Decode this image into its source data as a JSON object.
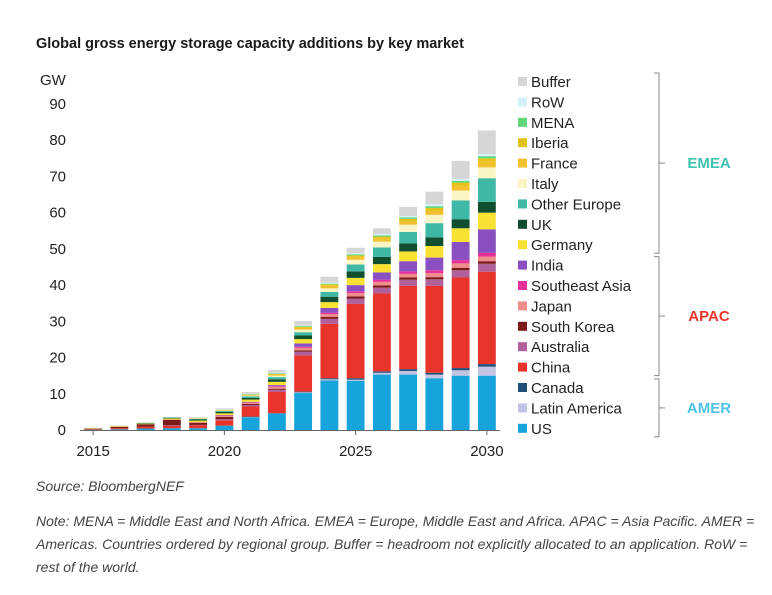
{
  "title": "Global gross energy storage capacity additions by key market",
  "source": "Source: BloombergNEF",
  "note": "Note: MENA = Middle East and North Africa. EMEA = Europe, Middle East and Africa. APAC = Asia Pacific. AMER = Americas. Countries ordered by regional group. Buffer = headroom not explicitly allocated to an application. RoW = rest of the world.",
  "regions": [
    {
      "name": "EMEA",
      "color": "#3fc2b0"
    },
    {
      "name": "APAC",
      "color": "#e8342a"
    },
    {
      "name": "AMER",
      "color": "#4fc3e8"
    }
  ],
  "chart_data": {
    "type": "bar",
    "stacked": true,
    "ylabel": "GW",
    "ylim": [
      0,
      90
    ],
    "yticks": [
      0,
      10,
      20,
      30,
      40,
      50,
      60,
      70,
      80,
      90
    ],
    "x": [
      2015,
      2016,
      2017,
      2018,
      2019,
      2020,
      2021,
      2022,
      2023,
      2024,
      2025,
      2026,
      2027,
      2028,
      2029,
      2030
    ],
    "xtick_labels": [
      "2015",
      "2020",
      "2025",
      "2030"
    ],
    "grid": false,
    "legend_position": "right",
    "series": [
      {
        "name": "US",
        "color": "#17a3dc",
        "values": [
          0.1,
          0.2,
          0.4,
          0.5,
          0.5,
          1.2,
          3.5,
          4.5,
          10.2,
          13.7,
          13.6,
          15.3,
          15.3,
          14.3,
          15.0,
          15.0
        ]
      },
      {
        "name": "Latin America",
        "color": "#c5c3e3",
        "values": [
          0,
          0,
          0,
          0,
          0,
          0,
          0.1,
          0.1,
          0.2,
          0.3,
          0.3,
          0.5,
          1.0,
          1.0,
          1.5,
          2.5
        ]
      },
      {
        "name": "Canada",
        "color": "#1f4e79",
        "values": [
          0,
          0,
          0,
          0,
          0,
          0,
          0.1,
          0.1,
          0.2,
          0.3,
          0.4,
          0.4,
          0.5,
          0.5,
          0.6,
          0.7
        ]
      },
      {
        "name": "China",
        "color": "#e8342a",
        "values": [
          0.1,
          0.3,
          0.5,
          0.7,
          0.8,
          1.5,
          2.8,
          5.8,
          10.0,
          15.0,
          20.5,
          21.5,
          23.0,
          24.0,
          25.0,
          25.5
        ]
      },
      {
        "name": "Australia",
        "color": "#b0609a",
        "values": [
          0,
          0,
          0,
          0.1,
          0.1,
          0.3,
          0.4,
          0.6,
          1.0,
          1.4,
          1.5,
          1.6,
          1.7,
          1.8,
          2.0,
          2.2
        ]
      },
      {
        "name": "South Korea",
        "color": "#7b1a1a",
        "values": [
          0.2,
          0.4,
          0.7,
          1.5,
          0.6,
          0.6,
          0.3,
          0.3,
          0.4,
          0.5,
          0.6,
          0.6,
          0.6,
          0.6,
          0.7,
          0.7
        ]
      },
      {
        "name": "Japan",
        "color": "#ef8c8c",
        "values": [
          0,
          0,
          0,
          0.1,
          0.2,
          0.3,
          0.4,
          0.5,
          0.7,
          0.8,
          0.9,
          1.0,
          1.0,
          1.1,
          1.2,
          1.3
        ]
      },
      {
        "name": "Southeast Asia",
        "color": "#e8309a",
        "values": [
          0,
          0,
          0,
          0,
          0,
          0.1,
          0.1,
          0.2,
          0.3,
          0.4,
          0.5,
          0.6,
          0.7,
          0.8,
          0.9,
          1.0
        ]
      },
      {
        "name": "India",
        "color": "#8a4fc0",
        "values": [
          0,
          0,
          0,
          0,
          0,
          0.1,
          0.1,
          0.3,
          0.9,
          1.3,
          1.7,
          2.0,
          2.8,
          3.5,
          5.0,
          6.5
        ]
      },
      {
        "name": "Germany",
        "color": "#f7e133",
        "values": [
          0.1,
          0.2,
          0.2,
          0.3,
          0.4,
          0.5,
          0.6,
          0.9,
          1.2,
          1.6,
          2.0,
          2.3,
          2.7,
          3.2,
          3.8,
          4.6
        ]
      },
      {
        "name": "UK",
        "color": "#0f4f2f",
        "values": [
          0,
          0,
          0.1,
          0.2,
          0.3,
          0.4,
          0.5,
          0.7,
          1.0,
          1.5,
          1.8,
          2.0,
          2.2,
          2.4,
          2.5,
          3.0
        ]
      },
      {
        "name": "Other Europe",
        "color": "#3fb8a6",
        "values": [
          0,
          0,
          0.1,
          0.1,
          0.2,
          0.3,
          0.4,
          0.6,
          0.9,
          1.3,
          1.9,
          2.6,
          3.2,
          3.9,
          5.2,
          6.5
        ]
      },
      {
        "name": "Italy",
        "color": "#fbf5c6",
        "values": [
          0,
          0,
          0,
          0,
          0.1,
          0.1,
          0.2,
          0.4,
          0.7,
          1.0,
          1.3,
          1.6,
          2.0,
          2.3,
          2.7,
          3.0
        ]
      },
      {
        "name": "France",
        "color": "#f2c12e",
        "values": [
          0,
          0,
          0,
          0,
          0.1,
          0.1,
          0.2,
          0.3,
          0.5,
          0.7,
          0.8,
          0.9,
          1.0,
          1.2,
          1.4,
          1.6
        ]
      },
      {
        "name": "Iberia",
        "color": "#e2c31a",
        "values": [
          0,
          0,
          0,
          0,
          0,
          0.1,
          0.1,
          0.2,
          0.3,
          0.4,
          0.4,
          0.5,
          0.6,
          0.7,
          0.8,
          0.9
        ]
      },
      {
        "name": "MENA",
        "color": "#5fd67a",
        "values": [
          0,
          0,
          0,
          0,
          0,
          0,
          0.1,
          0.1,
          0.2,
          0.2,
          0.3,
          0.3,
          0.4,
          0.5,
          0.5,
          0.6
        ]
      },
      {
        "name": "RoW",
        "color": "#d4f0f8",
        "values": [
          0,
          0,
          0,
          0,
          0,
          0.1,
          0.1,
          0.2,
          0.2,
          0.3,
          0.3,
          0.4,
          0.4,
          0.5,
          0.5,
          0.6
        ]
      },
      {
        "name": "Buffer",
        "color": "#d6d6d6",
        "values": [
          0.1,
          0.1,
          0.1,
          0.1,
          0.2,
          0.3,
          0.5,
          0.8,
          1.2,
          1.6,
          1.5,
          1.6,
          2.5,
          3.5,
          5.0,
          6.5
        ]
      }
    ]
  }
}
